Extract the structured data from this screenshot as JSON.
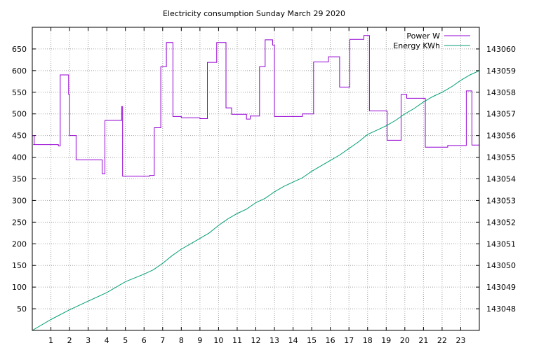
{
  "chart_data": {
    "type": "line",
    "title": "Electricity consumption Sunday March 29 2020",
    "xlabel": "",
    "ylabel": "",
    "y2label": "",
    "xlim": [
      0,
      24
    ],
    "ylim": [
      0,
      700
    ],
    "y2lim": [
      143047,
      143061
    ],
    "grid": true,
    "legend_position": "top-right",
    "x_ticks": [
      1,
      2,
      3,
      4,
      5,
      6,
      7,
      8,
      9,
      10,
      11,
      12,
      13,
      14,
      15,
      16,
      17,
      18,
      19,
      20,
      21,
      22,
      23
    ],
    "y_ticks": [
      50,
      100,
      150,
      200,
      250,
      300,
      350,
      400,
      450,
      500,
      550,
      600,
      650
    ],
    "y2_ticks": [
      143048,
      143049,
      143050,
      143051,
      143052,
      143053,
      143054,
      143055,
      143056,
      143057,
      143058,
      143059,
      143060
    ],
    "series": [
      {
        "name": "Power W",
        "axis": "y",
        "color": "#9400d3",
        "step": true,
        "x": [
          0.0,
          0.1,
          0.05,
          1.4,
          1.5,
          1.95,
          2.0,
          2.35,
          3.5,
          3.75,
          3.85,
          3.9,
          4.8,
          4.85,
          6.3,
          6.55,
          6.9,
          7.1,
          7.2,
          7.55,
          8.0,
          9.0,
          9.4,
          9.9,
          10.4,
          10.7,
          11.2,
          11.5,
          11.7,
          12.2,
          12.5,
          12.9,
          13.0,
          13.05,
          14.3,
          14.5,
          15.1,
          15.9,
          16.5,
          16.95,
          17.05,
          17.8,
          18.1,
          18.5,
          19.05,
          19.8,
          20.1,
          20.9,
          21.1,
          22.0,
          22.3,
          23.3,
          23.6
        ],
        "y": [
          450,
          429,
          429,
          426,
          590,
          545,
          450,
          394,
          394,
          362,
          362,
          485,
          517,
          356,
          358,
          468,
          609,
          609,
          665,
          494,
          491,
          489,
          619,
          665,
          514,
          499,
          499,
          488,
          495,
          609,
          671,
          659,
          494,
          494,
          494,
          500,
          620,
          632,
          562,
          562,
          672,
          681,
          507,
          507,
          439,
          545,
          536,
          536,
          423,
          423,
          427,
          553,
          428
        ],
        "x_end": 24
      },
      {
        "name": "Energy KWh",
        "axis": "y2",
        "color": "#009e73",
        "step": false,
        "x": [
          0,
          1,
          2,
          3,
          4,
          5,
          6,
          6.5,
          7,
          7.5,
          8,
          8.5,
          9,
          9.5,
          10,
          10.5,
          11,
          11.5,
          12,
          12.5,
          13,
          13.5,
          14,
          14.5,
          15,
          15.5,
          16,
          16.5,
          17,
          17.5,
          18,
          18.5,
          19,
          19.5,
          20,
          20.5,
          21,
          21.5,
          22,
          22.5,
          23,
          23.5,
          24
        ],
        "y": [
          143047.0,
          143047.5,
          143047.95,
          143048.35,
          143048.75,
          143049.25,
          143049.6,
          143049.8,
          143050.1,
          143050.45,
          143050.75,
          143051.0,
          143051.25,
          143051.5,
          143051.85,
          143052.15,
          143052.4,
          143052.6,
          143052.9,
          143053.1,
          143053.4,
          143053.65,
          143053.85,
          143054.05,
          143054.35,
          143054.6,
          143054.85,
          143055.1,
          143055.4,
          143055.7,
          143056.05,
          143056.25,
          143056.45,
          143056.7,
          143057.0,
          143057.25,
          143057.55,
          143057.8,
          143058.0,
          143058.25,
          143058.55,
          143058.8,
          143059.0
        ]
      }
    ]
  }
}
